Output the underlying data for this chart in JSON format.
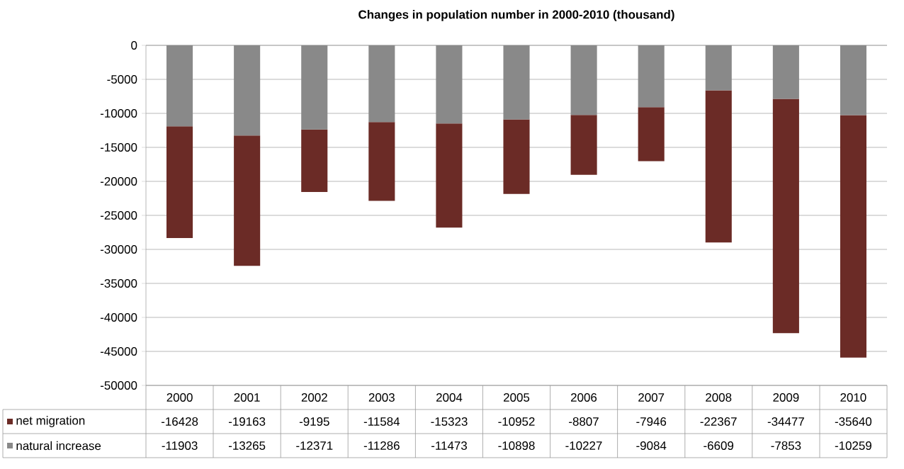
{
  "chart_data": {
    "type": "bar",
    "title": "Changes in population  number in 2000-2010 (thousand)",
    "categories": [
      "2000",
      "2001",
      "2002",
      "2003",
      "2004",
      "2005",
      "2006",
      "2007",
      "2008",
      "2009",
      "2010"
    ],
    "series": [
      {
        "name": "natural increase",
        "color": "#898989",
        "values": [
          -11903,
          -13265,
          -12371,
          -11286,
          -11473,
          -10898,
          -10227,
          -9084,
          -6609,
          -7853,
          -10259
        ]
      },
      {
        "name": "net migration",
        "color": "#6b2b26",
        "values": [
          -16428,
          -19163,
          -9195,
          -11584,
          -15323,
          -10952,
          -8807,
          -7946,
          -22367,
          -34477,
          -35640
        ]
      }
    ],
    "stacked": true,
    "ylim": [
      -50000,
      0
    ],
    "yticks": [
      0,
      -5000,
      -10000,
      -15000,
      -20000,
      -25000,
      -30000,
      -35000,
      -40000,
      -45000,
      -50000
    ],
    "grid": "y",
    "data_labels": true,
    "legend": "bottom"
  }
}
